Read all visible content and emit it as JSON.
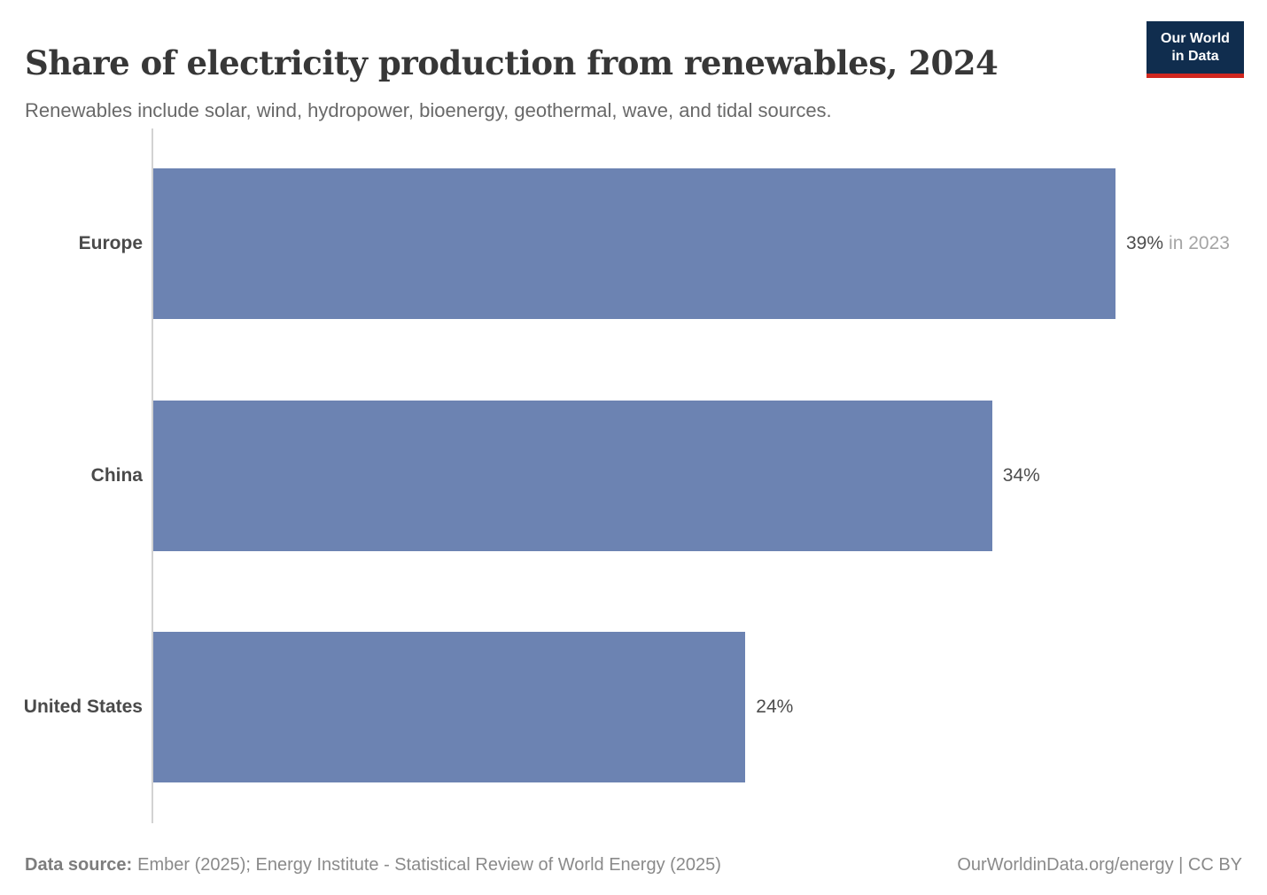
{
  "header": {
    "title": "Share of electricity production from renewables, 2024",
    "subtitle": "Renewables include solar, wind, hydropower, bioenergy, geothermal, wave, and tidal sources."
  },
  "logo": {
    "line1": "Our World",
    "line2": "in Data"
  },
  "chart_data": {
    "type": "bar",
    "orientation": "horizontal",
    "title": "Share of electricity production from renewables, 2024",
    "subtitle": "Renewables include solar, wind, hydropower, bioenergy, geothermal, wave, and tidal sources.",
    "categories": [
      "Europe",
      "China",
      "United States"
    ],
    "values": [
      39,
      34,
      24
    ],
    "unit": "%",
    "xlim": [
      0,
      39
    ],
    "value_labels": [
      "39%",
      "34%",
      "24%"
    ],
    "value_annotations": [
      "in 2023",
      "",
      ""
    ],
    "grid": false,
    "legend": "none"
  },
  "colors": {
    "bar": "#6c83b2",
    "axis_line": "#d2d2d2",
    "logo_background": "#102d4e",
    "logo_accent": "#d1271f"
  },
  "footer": {
    "datasource_label": "Data source:",
    "datasource_value": "Ember (2025); Energy Institute - Statistical Review of World Energy (2025)",
    "attribution": "OurWorldinData.org/energy | CC BY"
  }
}
